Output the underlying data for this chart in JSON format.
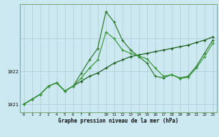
{
  "xlabel": "Graphe pression niveau de la mer (hPa)",
  "background_color": "#cce8f0",
  "grid_color_v": "#aac8d8",
  "grid_color_h": "#aac8d8",
  "line_dark": "#1a5c1a",
  "line_mid": "#2d7a2d",
  "line_light": "#3a9a3a",
  "hours_all": [
    0,
    1,
    2,
    3,
    4,
    5,
    6,
    7,
    8,
    9,
    10,
    11,
    12,
    13,
    14,
    15,
    16,
    17,
    18,
    19,
    20,
    21,
    22,
    23
  ],
  "s_flat": [
    1021.0,
    1021.15,
    1021.3,
    1021.55,
    1021.65,
    1021.4,
    1021.55,
    1021.7,
    1021.85,
    1021.95,
    1022.1,
    1022.25,
    1022.35,
    1022.45,
    1022.5,
    1022.55,
    1022.6,
    1022.65,
    1022.7,
    1022.75,
    1022.8,
    1022.88,
    1022.95,
    1023.05
  ],
  "s_peaked": [
    1021.0,
    1021.15,
    1021.3,
    1021.55,
    1021.65,
    1021.4,
    1021.55,
    1021.95,
    1022.35,
    1022.7,
    1023.82,
    1023.5,
    1022.95,
    1022.65,
    1022.45,
    1022.25,
    1021.85,
    1021.8,
    1021.9,
    1021.8,
    1021.85,
    1022.15,
    1022.55,
    1022.95
  ],
  "s_mid": [
    1021.0,
    1021.15,
    1021.3,
    1021.55,
    1021.65,
    1021.4,
    1021.55,
    1021.8,
    1022.1,
    1022.35,
    1023.2,
    1023.0,
    1022.65,
    1022.55,
    1022.47,
    1022.38,
    1022.1,
    1021.85,
    1021.9,
    1021.78,
    1021.82,
    1022.1,
    1022.45,
    1022.85
  ],
  "ylim_min": 1020.75,
  "ylim_max": 1024.05,
  "ytick_labels": [
    "1021",
    "1022"
  ],
  "ytick_vals": [
    1021.0,
    1022.0
  ],
  "xtick_vals": [
    0,
    1,
    2,
    3,
    4,
    5,
    6,
    7,
    8,
    10,
    11,
    12,
    13,
    14,
    15,
    16,
    17,
    18,
    19,
    20,
    21,
    22,
    23
  ],
  "xtick_labels": [
    "0",
    "1",
    "2",
    "3",
    "4",
    "5",
    "6",
    "7",
    "8",
    "10",
    "11",
    "12",
    "13",
    "14",
    "15",
    "16",
    "17",
    "18",
    "19",
    "20",
    "21",
    "22",
    "23"
  ]
}
